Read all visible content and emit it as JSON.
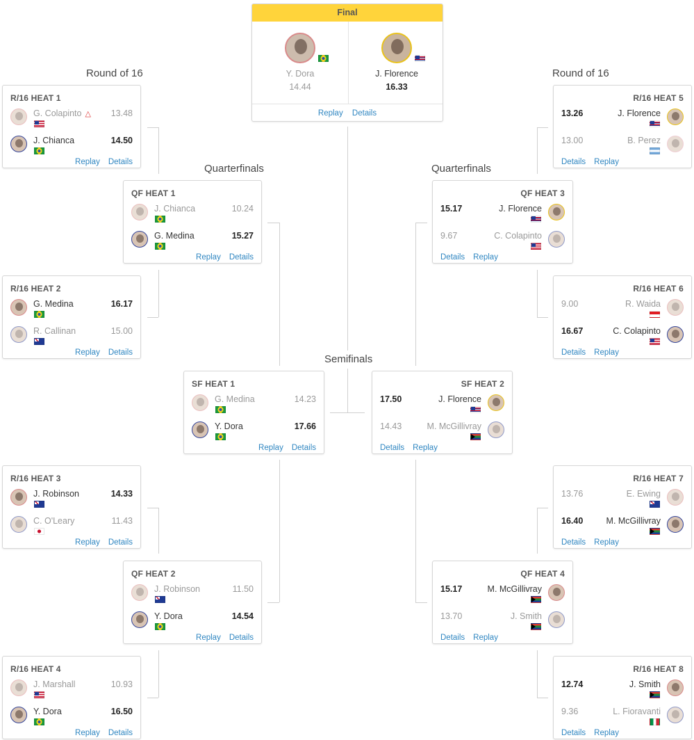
{
  "rounds": {
    "r16_left": "Round of 16",
    "r16_right": "Round of 16",
    "qf_left": "Quarterfinals",
    "qf_right": "Quarterfinals",
    "sf": "Semifinals"
  },
  "links": {
    "replay": "Replay",
    "details": "Details"
  },
  "final": {
    "title": "Final",
    "a": {
      "name": "Y. Dora",
      "score": "14.44",
      "flag": "BR"
    },
    "b": {
      "name": "J. Florence",
      "score": "16.33",
      "flag": "HI"
    }
  },
  "heats": {
    "r16_1": {
      "title": "R/16 HEAT 1",
      "p1": {
        "name": "G. Colapinto",
        "score": "13.48",
        "flag": "US",
        "warning": "△"
      },
      "p2": {
        "name": "J. Chianca",
        "score": "14.50",
        "flag": "BR"
      }
    },
    "r16_2": {
      "title": "R/16 HEAT 2",
      "p1": {
        "name": "G. Medina",
        "score": "16.17",
        "flag": "BR"
      },
      "p2": {
        "name": "R. Callinan",
        "score": "15.00",
        "flag": "AU"
      }
    },
    "r16_3": {
      "title": "R/16 HEAT 3",
      "p1": {
        "name": "J. Robinson",
        "score": "14.33",
        "flag": "AU"
      },
      "p2": {
        "name": "C. O'Leary",
        "score": "11.43",
        "flag": "JP"
      }
    },
    "r16_4": {
      "title": "R/16 HEAT 4",
      "p1": {
        "name": "J. Marshall",
        "score": "10.93",
        "flag": "US"
      },
      "p2": {
        "name": "Y. Dora",
        "score": "16.50",
        "flag": "BR"
      }
    },
    "r16_5": {
      "title": "R/16 HEAT 5",
      "p1": {
        "name": "J. Florence",
        "score": "13.26",
        "flag": "HI"
      },
      "p2": {
        "name": "B. Perez",
        "score": "13.00",
        "flag": "AR"
      }
    },
    "r16_6": {
      "title": "R/16 HEAT 6",
      "p1": {
        "name": "R. Waida",
        "score": "9.00",
        "flag": "ID"
      },
      "p2": {
        "name": "C. Colapinto",
        "score": "16.67",
        "flag": "US"
      }
    },
    "r16_7": {
      "title": "R/16 HEAT 7",
      "p1": {
        "name": "E. Ewing",
        "score": "13.76",
        "flag": "AU"
      },
      "p2": {
        "name": "M. McGillivray",
        "score": "16.40",
        "flag": "ZA"
      }
    },
    "r16_8": {
      "title": "R/16 HEAT 8",
      "p1": {
        "name": "J. Smith",
        "score": "12.74",
        "flag": "ZA"
      },
      "p2": {
        "name": "L. Fioravanti",
        "score": "9.36",
        "flag": "IT"
      }
    },
    "qf_1": {
      "title": "QF HEAT 1",
      "p1": {
        "name": "J. Chianca",
        "score": "10.24",
        "flag": "BR"
      },
      "p2": {
        "name": "G. Medina",
        "score": "15.27",
        "flag": "BR"
      }
    },
    "qf_2": {
      "title": "QF HEAT 2",
      "p1": {
        "name": "J. Robinson",
        "score": "11.50",
        "flag": "AU"
      },
      "p2": {
        "name": "Y. Dora",
        "score": "14.54",
        "flag": "BR"
      }
    },
    "qf_3": {
      "title": "QF HEAT 3",
      "p1": {
        "name": "J. Florence",
        "score": "15.17",
        "flag": "HI"
      },
      "p2": {
        "name": "C. Colapinto",
        "score": "9.67",
        "flag": "US"
      }
    },
    "qf_4": {
      "title": "QF HEAT 4",
      "p1": {
        "name": "M. McGillivray",
        "score": "15.17",
        "flag": "ZA"
      },
      "p2": {
        "name": "J. Smith",
        "score": "13.70",
        "flag": "ZA"
      }
    },
    "sf_1": {
      "title": "SF HEAT 1",
      "p1": {
        "name": "G. Medina",
        "score": "14.23",
        "flag": "BR"
      },
      "p2": {
        "name": "Y. Dora",
        "score": "17.66",
        "flag": "BR"
      }
    },
    "sf_2": {
      "title": "SF HEAT 2",
      "p1": {
        "name": "J. Florence",
        "score": "17.50",
        "flag": "HI"
      },
      "p2": {
        "name": "M. McGillivray",
        "score": "14.43",
        "flag": "ZA"
      }
    }
  }
}
